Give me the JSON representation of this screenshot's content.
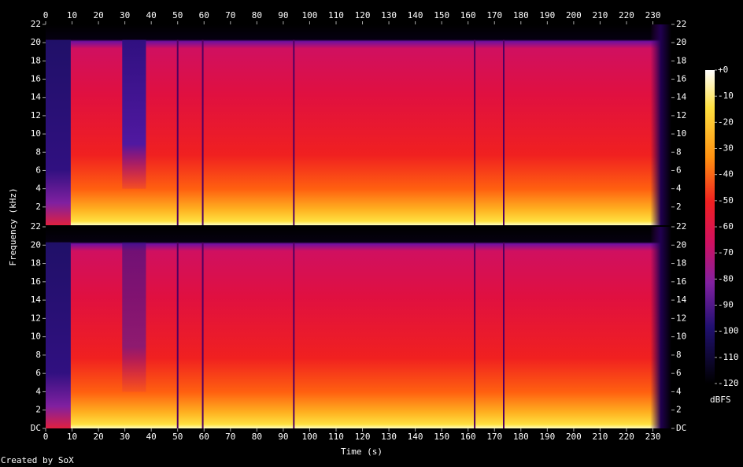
{
  "chart_data": {
    "type": "spectrogram",
    "xlabel": "Time (s)",
    "ylabel": "Frequency (kHz)",
    "xlim": [
      0,
      237
    ],
    "xticks": [
      0,
      10,
      20,
      30,
      40,
      50,
      60,
      70,
      80,
      90,
      100,
      110,
      120,
      130,
      140,
      150,
      160,
      170,
      180,
      190,
      200,
      210,
      220,
      230
    ],
    "ylim": [
      0,
      22
    ],
    "panels": [
      {
        "yticks": [
          2,
          4,
          6,
          8,
          10,
          12,
          14,
          16,
          18,
          20,
          22
        ]
      },
      {
        "yticks": [
          {
            "value": 0,
            "label": "DC"
          },
          2,
          4,
          6,
          8,
          10,
          12,
          14,
          16,
          18,
          20,
          22
        ]
      }
    ],
    "colorbar": {
      "label": "dBFS",
      "lim": [
        -120,
        0
      ],
      "ticks": [
        {
          "value": 0,
          "label": "+0"
        },
        -10,
        -20,
        -30,
        -40,
        -50,
        -60,
        -70,
        -80,
        -90,
        -100,
        -110,
        -120
      ]
    },
    "footer": "Created by SoX"
  }
}
